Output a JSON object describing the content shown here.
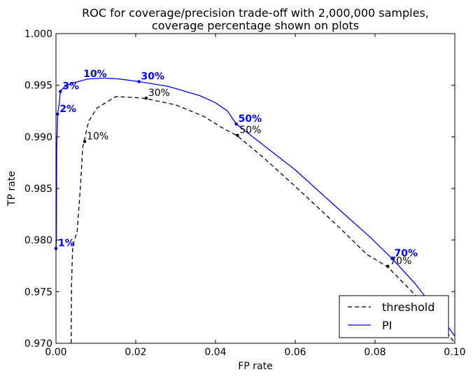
{
  "chart_data": {
    "type": "line",
    "title": "ROC for coverage/precision trade-off with 2,000,000 samples,",
    "subtitle": "coverage percentage shown on plots",
    "xlabel": "FP rate",
    "ylabel": "TP rate",
    "xlim": [
      0.0,
      0.1
    ],
    "ylim": [
      0.97,
      1.0
    ],
    "xticks": [
      0.0,
      0.02,
      0.04,
      0.06,
      0.08,
      0.1
    ],
    "xtick_labels": [
      "0.00",
      "0.02",
      "0.04",
      "0.06",
      "0.08",
      "0.10"
    ],
    "yticks": [
      0.97,
      0.975,
      0.98,
      0.985,
      0.99,
      0.995,
      1.0
    ],
    "ytick_labels": [
      "0.970",
      "0.975",
      "0.980",
      "0.985",
      "0.990",
      "0.995",
      "1.000"
    ],
    "grid": false,
    "legend_position": "bottom-right",
    "series": [
      {
        "name": "threshold",
        "color": "#000000",
        "dash": true,
        "points": [
          [
            0.0038,
            0.97
          ],
          [
            0.0039,
            0.9755
          ],
          [
            0.0042,
            0.9795
          ],
          [
            0.0053,
            0.9808
          ],
          [
            0.0062,
            0.9855
          ],
          [
            0.0067,
            0.989
          ],
          [
            0.0073,
            0.99
          ],
          [
            0.0082,
            0.9915
          ],
          [
            0.0103,
            0.9928
          ],
          [
            0.015,
            0.9939
          ],
          [
            0.02,
            0.9938
          ],
          [
            0.0226,
            0.9937
          ],
          [
            0.03,
            0.9931
          ],
          [
            0.037,
            0.992
          ],
          [
            0.042,
            0.9908
          ],
          [
            0.0455,
            0.9901
          ],
          [
            0.052,
            0.988
          ],
          [
            0.06,
            0.9852
          ],
          [
            0.07,
            0.9816
          ],
          [
            0.078,
            0.9786
          ],
          [
            0.0832,
            0.9774
          ],
          [
            0.088,
            0.9755
          ],
          [
            0.095,
            0.9727
          ],
          [
            0.1,
            0.97
          ]
        ],
        "markers": [
          {
            "x": 0.0072,
            "y": 0.98955,
            "label": "10%"
          },
          {
            "x": 0.0226,
            "y": 0.99375,
            "label": "30%"
          },
          {
            "x": 0.0455,
            "y": 0.99015,
            "label": "50%"
          },
          {
            "x": 0.0832,
            "y": 0.97745,
            "label": "70%"
          }
        ]
      },
      {
        "name": "PI",
        "color": "#0000ff",
        "dash": false,
        "points": [
          [
            0.0,
            0.9792
          ],
          [
            0.0001,
            0.98
          ],
          [
            0.0002,
            0.989
          ],
          [
            0.0004,
            0.9922
          ],
          [
            0.0008,
            0.9932
          ],
          [
            0.001,
            0.994
          ],
          [
            0.0011,
            0.9944
          ],
          [
            0.002,
            0.9948
          ],
          [
            0.004,
            0.9952
          ],
          [
            0.006,
            0.9954
          ],
          [
            0.008,
            0.9956
          ],
          [
            0.012,
            0.9957
          ],
          [
            0.016,
            0.9956
          ],
          [
            0.0208,
            0.99535
          ],
          [
            0.028,
            0.9949
          ],
          [
            0.036,
            0.994
          ],
          [
            0.04,
            0.9933
          ],
          [
            0.043,
            0.9925
          ],
          [
            0.0452,
            0.99125
          ],
          [
            0.05,
            0.9898
          ],
          [
            0.06,
            0.9868
          ],
          [
            0.07,
            0.9833
          ],
          [
            0.079,
            0.9802
          ],
          [
            0.0843,
            0.9782
          ],
          [
            0.09,
            0.9758
          ],
          [
            0.095,
            0.9733
          ],
          [
            0.1,
            0.9707
          ]
        ],
        "markers": [
          {
            "x": 0.0,
            "y": 0.9792,
            "label": "1%"
          },
          {
            "x": 0.0004,
            "y": 0.9922,
            "label": "2%"
          },
          {
            "x": 0.0011,
            "y": 0.9944,
            "label": "3%"
          },
          {
            "x": 0.0208,
            "y": 0.99535,
            "label": "30%"
          },
          {
            "x": 0.0452,
            "y": 0.99125,
            "label": "50%"
          },
          {
            "x": 0.0843,
            "y": 0.9782,
            "label": "70%"
          }
        ],
        "extra_labels": [
          {
            "x": 0.006,
            "y": 0.9956,
            "label": "10%"
          }
        ]
      }
    ],
    "legend": [
      "threshold",
      "PI"
    ]
  }
}
